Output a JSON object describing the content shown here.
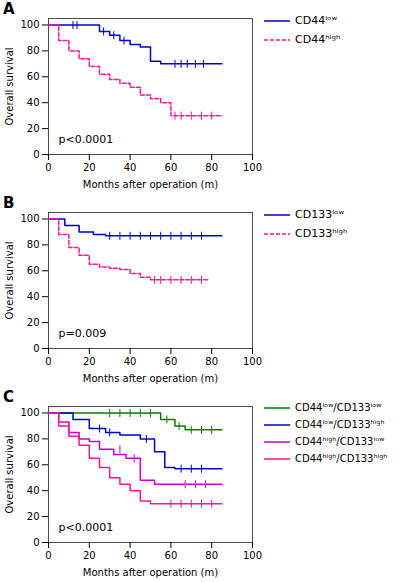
{
  "chart_data": [
    {
      "type": "step",
      "title": "A",
      "annotations": [
        "p<0.0001"
      ],
      "xlabel": "Months after operation (m)",
      "ylabel": "Overall survival",
      "xlim": [
        0,
        100
      ],
      "ylim": [
        0,
        105
      ],
      "xticks": [
        0,
        20,
        40,
        60,
        80,
        100
      ],
      "yticks": [
        0,
        20,
        40,
        60,
        80,
        100
      ],
      "grid": false,
      "legend": "right",
      "series": [
        {
          "name": "CD44ˡᵒʷ",
          "color": "#0000CD",
          "line_style": "solid",
          "x": [
            0,
            25,
            25,
            30,
            30,
            35,
            35,
            40,
            40,
            45,
            45,
            50,
            50,
            55,
            55,
            60,
            60,
            85
          ],
          "values": [
            100,
            100,
            95,
            95,
            92,
            92,
            88,
            88,
            85,
            85,
            83,
            83,
            72,
            72,
            70,
            70,
            70,
            70
          ],
          "censor_x": [
            12,
            14,
            27,
            32,
            37,
            62,
            65,
            68,
            72,
            76
          ],
          "censor_y": [
            100,
            100,
            95,
            92,
            88,
            70,
            70,
            70,
            70,
            70
          ]
        },
        {
          "name": "CD44ʰⁱᵍʰ",
          "color": "#FF1493",
          "line_style": "dashed",
          "x": [
            0,
            5,
            5,
            10,
            10,
            15,
            15,
            20,
            20,
            25,
            25,
            30,
            30,
            35,
            35,
            40,
            40,
            45,
            45,
            50,
            50,
            55,
            55,
            60,
            60,
            85
          ],
          "values": [
            100,
            100,
            88,
            88,
            80,
            80,
            74,
            74,
            68,
            68,
            62,
            62,
            58,
            58,
            55,
            55,
            52,
            52,
            46,
            46,
            43,
            43,
            40,
            40,
            30,
            30
          ],
          "censor_x": [
            62,
            65,
            70,
            75,
            80
          ],
          "censor_y": [
            30,
            30,
            30,
            30,
            30
          ]
        }
      ]
    },
    {
      "type": "step",
      "title": "B",
      "annotations": [
        "p=0.009"
      ],
      "xlabel": "Months after operation (m)",
      "ylabel": "Overall survival",
      "xlim": [
        0,
        100
      ],
      "ylim": [
        0,
        105
      ],
      "xticks": [
        0,
        20,
        40,
        60,
        80,
        100
      ],
      "yticks": [
        0,
        20,
        40,
        60,
        80,
        100
      ],
      "grid": false,
      "legend": "right",
      "series": [
        {
          "name": "CD133ˡᵒʷ",
          "color": "#0000CD",
          "line_style": "solid",
          "x": [
            0,
            8,
            8,
            15,
            15,
            22,
            22,
            28,
            28,
            85
          ],
          "values": [
            100,
            100,
            95,
            95,
            90,
            90,
            88,
            88,
            87,
            87
          ],
          "censor_x": [
            30,
            35,
            40,
            45,
            50,
            55,
            60,
            65,
            70,
            75
          ],
          "censor_y": [
            87,
            87,
            87,
            87,
            87,
            87,
            87,
            87,
            87,
            87
          ]
        },
        {
          "name": "CD133ʰⁱᵍʰ",
          "color": "#FF1493",
          "line_style": "dashed",
          "x": [
            0,
            5,
            5,
            10,
            10,
            15,
            15,
            20,
            20,
            25,
            25,
            30,
            30,
            35,
            35,
            40,
            40,
            45,
            45,
            50,
            50,
            78
          ],
          "values": [
            100,
            100,
            88,
            88,
            78,
            78,
            72,
            72,
            65,
            65,
            63,
            63,
            62,
            62,
            61,
            61,
            58,
            58,
            55,
            55,
            53,
            53
          ],
          "censor_x": [
            52,
            55,
            60,
            65,
            70,
            75
          ],
          "censor_y": [
            53,
            53,
            53,
            53,
            53,
            53
          ]
        }
      ]
    },
    {
      "type": "step",
      "title": "C",
      "annotations": [
        "p<0.0001"
      ],
      "xlabel": "Months after operation (m)",
      "ylabel": "Overall survival",
      "xlim": [
        0,
        100
      ],
      "ylim": [
        0,
        105
      ],
      "xticks": [
        0,
        20,
        40,
        60,
        80,
        100
      ],
      "yticks": [
        0,
        20,
        40,
        60,
        80,
        100
      ],
      "grid": false,
      "legend": "right",
      "series": [
        {
          "name": "CD44ˡᵒʷ/CD133ˡᵒʷ",
          "color": "#008000",
          "line_style": "solid",
          "x": [
            0,
            55,
            55,
            62,
            62,
            67,
            67,
            85
          ],
          "values": [
            100,
            100,
            95,
            95,
            90,
            90,
            87,
            87
          ],
          "censor_x": [
            30,
            35,
            40,
            45,
            50,
            58,
            64,
            70,
            75,
            80
          ],
          "censor_y": [
            100,
            100,
            100,
            100,
            100,
            95,
            90,
            87,
            87,
            87
          ]
        },
        {
          "name": "CD44ˡᵒʷ/CD133ʰⁱᵍʰ",
          "color": "#0000CD",
          "line_style": "solid",
          "x": [
            0,
            12,
            12,
            20,
            20,
            28,
            28,
            35,
            35,
            45,
            45,
            52,
            52,
            57,
            57,
            62,
            62,
            85
          ],
          "values": [
            100,
            100,
            95,
            95,
            88,
            88,
            85,
            85,
            83,
            83,
            80,
            80,
            70,
            70,
            58,
            58,
            57,
            57
          ],
          "censor_x": [
            25,
            30,
            48,
            65,
            70,
            75
          ],
          "censor_y": [
            88,
            85,
            80,
            57,
            57,
            57
          ]
        },
        {
          "name": "CD44ʰⁱᵍʰ/CD133ˡᵒʷ",
          "color": "#CC00CC",
          "line_style": "solid",
          "x": [
            0,
            5,
            5,
            10,
            10,
            15,
            15,
            20,
            20,
            25,
            25,
            32,
            32,
            38,
            38,
            45,
            45,
            52,
            52,
            58,
            58,
            65,
            65,
            85
          ],
          "values": [
            100,
            100,
            93,
            93,
            85,
            85,
            80,
            80,
            78,
            78,
            72,
            72,
            68,
            68,
            65,
            65,
            48,
            48,
            45,
            45,
            45,
            45,
            45,
            45
          ],
          "censor_x": [
            35,
            42,
            67,
            72,
            77
          ],
          "censor_y": [
            72,
            65,
            45,
            45,
            45
          ]
        },
        {
          "name": "CD44ʰⁱᵍʰ/CD133ʰⁱᵍʰ",
          "color": "#FF1493",
          "line_style": "solid",
          "x": [
            0,
            5,
            5,
            10,
            10,
            15,
            15,
            20,
            20,
            25,
            25,
            30,
            30,
            35,
            35,
            40,
            40,
            45,
            45,
            50,
            50,
            58,
            58,
            85
          ],
          "values": [
            100,
            100,
            90,
            90,
            82,
            82,
            75,
            75,
            65,
            65,
            58,
            58,
            50,
            50,
            45,
            45,
            40,
            40,
            32,
            32,
            30,
            30,
            30,
            30
          ],
          "censor_x": [
            60,
            65,
            70,
            75,
            80
          ],
          "censor_y": [
            30,
            30,
            30,
            30,
            30
          ]
        }
      ]
    }
  ]
}
